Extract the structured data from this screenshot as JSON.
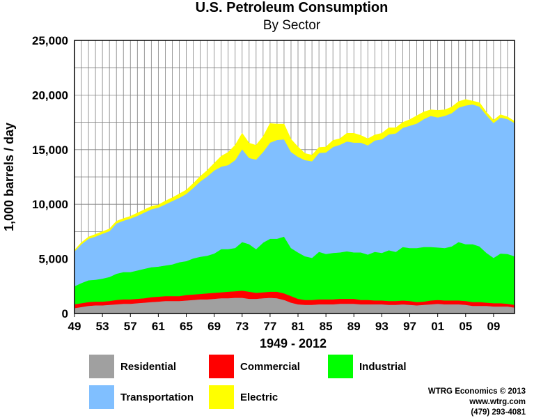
{
  "chart_data": {
    "type": "area",
    "stacked": true,
    "title": "U.S. Petroleum Consumption",
    "subtitle": "By Sector",
    "xlabel": "1949 - 2012",
    "ylabel": "1,000 barrels / day",
    "ylim": [
      0,
      25000
    ],
    "xlim": [
      1949,
      2012
    ],
    "grid": true,
    "legend_position": "bottom",
    "y_ticks": [
      "0",
      "5,000",
      "10,000",
      "15,000",
      "20,000",
      "25,000"
    ],
    "x_ticks": [
      "49",
      "53",
      "57",
      "61",
      "65",
      "69",
      "73",
      "77",
      "81",
      "85",
      "89",
      "93",
      "97",
      "01",
      "05",
      "09"
    ],
    "x": [
      1949,
      1950,
      1951,
      1952,
      1953,
      1954,
      1955,
      1956,
      1957,
      1958,
      1959,
      1960,
      1961,
      1962,
      1963,
      1964,
      1965,
      1966,
      1967,
      1968,
      1969,
      1970,
      1971,
      1972,
      1973,
      1974,
      1975,
      1976,
      1977,
      1978,
      1979,
      1980,
      1981,
      1982,
      1983,
      1984,
      1985,
      1986,
      1987,
      1988,
      1989,
      1990,
      1991,
      1992,
      1993,
      1994,
      1995,
      1996,
      1997,
      1998,
      1999,
      2000,
      2001,
      2002,
      2003,
      2004,
      2005,
      2006,
      2007,
      2008,
      2009,
      2010,
      2011,
      2012
    ],
    "series": [
      {
        "name": "Residential",
        "color": "#a0a0a0",
        "values": [
          500,
          600,
          700,
          750,
          750,
          800,
          850,
          900,
          900,
          950,
          1000,
          1050,
          1100,
          1150,
          1150,
          1150,
          1200,
          1250,
          1300,
          1300,
          1350,
          1400,
          1400,
          1450,
          1450,
          1350,
          1350,
          1400,
          1450,
          1400,
          1250,
          1000,
          850,
          800,
          800,
          850,
          850,
          850,
          900,
          900,
          900,
          850,
          850,
          850,
          850,
          800,
          800,
          850,
          800,
          750,
          800,
          850,
          900,
          850,
          850,
          850,
          800,
          700,
          700,
          700,
          650,
          650,
          650,
          550
        ]
      },
      {
        "name": "Commercial",
        "color": "#ff0000",
        "values": [
          350,
          350,
          350,
          350,
          350,
          350,
          400,
          400,
          400,
          400,
          400,
          450,
          450,
          450,
          450,
          450,
          500,
          500,
          500,
          550,
          550,
          550,
          600,
          600,
          650,
          650,
          550,
          550,
          550,
          600,
          600,
          600,
          500,
          450,
          450,
          450,
          450,
          450,
          450,
          450,
          450,
          400,
          400,
          350,
          350,
          350,
          350,
          350,
          350,
          300,
          300,
          350,
          350,
          350,
          350,
          350,
          350,
          350,
          350,
          300,
          300,
          300,
          250,
          250
        ]
      },
      {
        "name": "Industrial",
        "color": "#00ff00",
        "values": [
          1650,
          1850,
          2000,
          2000,
          2100,
          2200,
          2400,
          2500,
          2500,
          2600,
          2700,
          2750,
          2750,
          2800,
          2900,
          3100,
          3100,
          3300,
          3400,
          3450,
          3600,
          3950,
          3900,
          3950,
          4450,
          4350,
          4000,
          4550,
          4850,
          4850,
          5200,
          4400,
          4250,
          4000,
          3850,
          4350,
          4150,
          4250,
          4250,
          4350,
          4250,
          4350,
          4150,
          4450,
          4350,
          4650,
          4500,
          4900,
          4850,
          4950,
          5000,
          4900,
          4800,
          4800,
          4950,
          5350,
          5200,
          5300,
          5100,
          4550,
          4150,
          4550,
          4550,
          4450
        ]
      },
      {
        "name": "Transportation",
        "color": "#80bfff",
        "values": [
          3200,
          3550,
          3800,
          3950,
          4100,
          4200,
          4600,
          4700,
          4900,
          5000,
          5150,
          5300,
          5400,
          5600,
          5800,
          5900,
          6150,
          6450,
          6900,
          7250,
          7600,
          7550,
          7700,
          8050,
          8500,
          7900,
          8200,
          8300,
          8800,
          9050,
          8900,
          8800,
          8750,
          8800,
          8850,
          9050,
          9300,
          9700,
          9850,
          10050,
          10050,
          10050,
          10000,
          10200,
          10400,
          10600,
          10850,
          10900,
          11200,
          11400,
          11700,
          12000,
          11900,
          12100,
          12200,
          12300,
          12700,
          12800,
          12800,
          12600,
          12350,
          12450,
          12350,
          12200
        ]
      },
      {
        "name": "Electric",
        "color": "#ffff00",
        "values": [
          100,
          150,
          150,
          200,
          200,
          200,
          200,
          200,
          200,
          250,
          250,
          250,
          250,
          300,
          300,
          350,
          350,
          400,
          450,
          550,
          650,
          950,
          1150,
          1350,
          1450,
          1350,
          1300,
          1400,
          1750,
          1450,
          1400,
          1150,
          900,
          600,
          550,
          500,
          500,
          600,
          550,
          750,
          850,
          650,
          600,
          500,
          550,
          600,
          500,
          500,
          550,
          700,
          650,
          550,
          650,
          550,
          550,
          550,
          550,
          300,
          350,
          250,
          250,
          250,
          200,
          150
        ]
      }
    ]
  },
  "credits": {
    "line1": "WTRG Economics © 2013",
    "line2": "www.wtrg.com",
    "line3": "(479) 293-4081"
  }
}
